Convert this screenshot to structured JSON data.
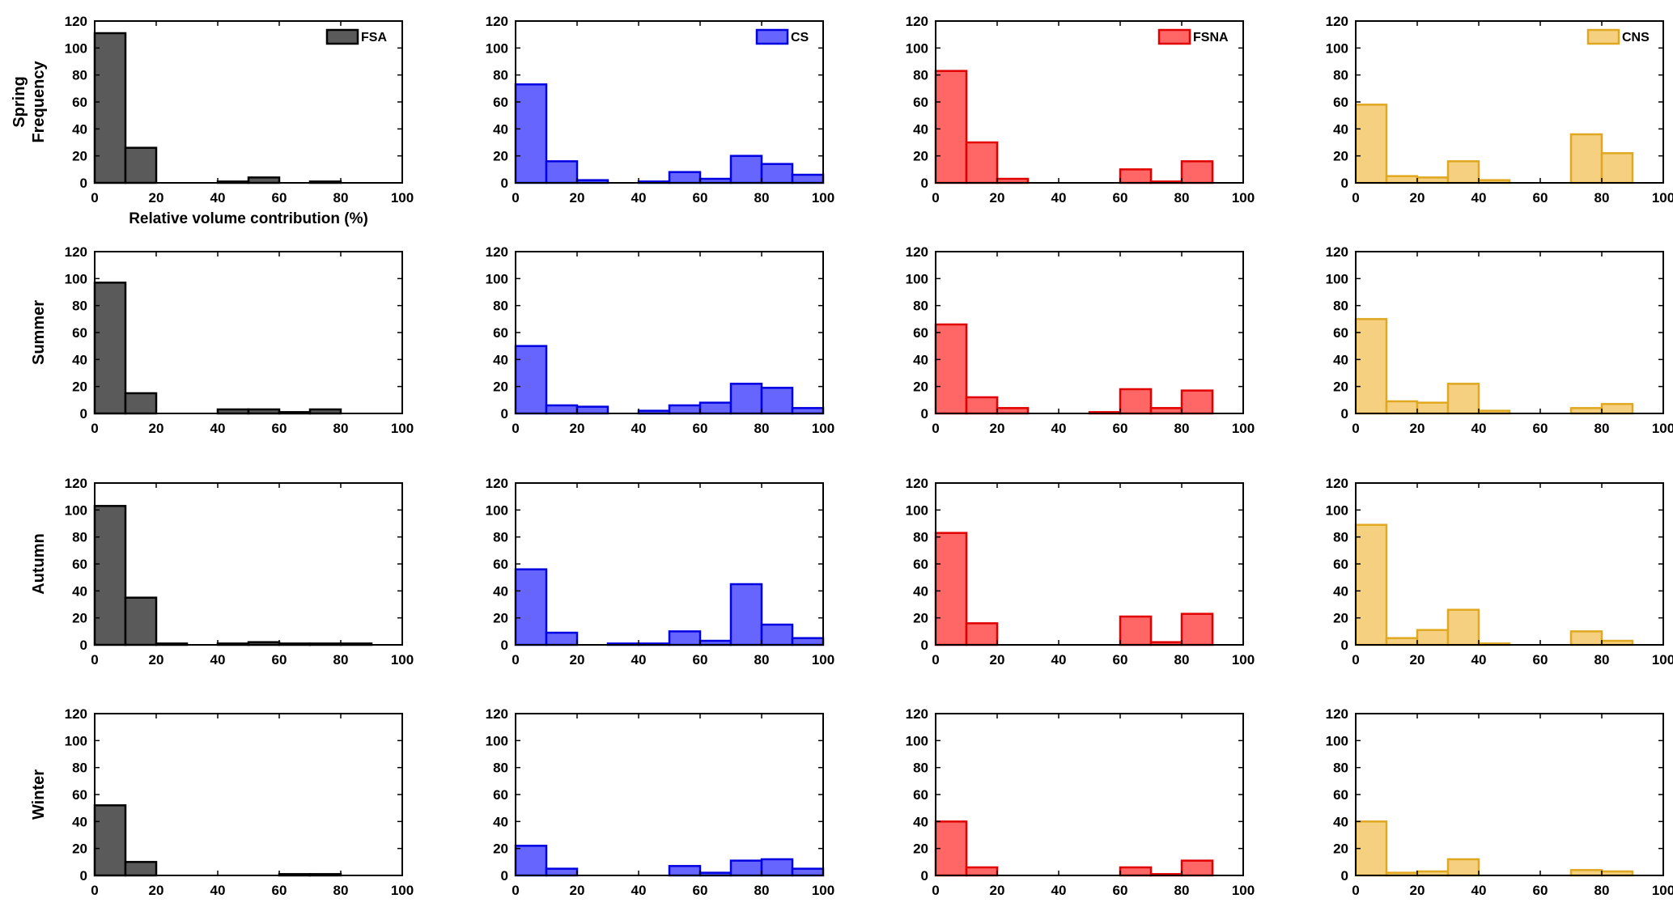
{
  "figure": {
    "ylabel": "Frequency",
    "xlabel": "Relative volume contribution (%)",
    "rows": [
      "Spring",
      "Summer",
      "Autumn",
      "Winter"
    ]
  },
  "chart_data": {
    "type": "bar",
    "xlim": [
      0,
      100
    ],
    "ylim": [
      0,
      120
    ],
    "xticks": [
      0,
      20,
      40,
      60,
      80,
      100
    ],
    "yticks": [
      0,
      20,
      40,
      60,
      80,
      100,
      120
    ],
    "bin_edges": [
      0,
      10,
      20,
      30,
      40,
      50,
      60,
      70,
      80,
      90,
      100
    ],
    "series": [
      {
        "name": "FSA",
        "fill": "#5a5a5a",
        "edge": "#000000"
      },
      {
        "name": "CS",
        "fill": "#6666ff",
        "edge": "#0000e0"
      },
      {
        "name": "FSNA",
        "fill": "#ff6666",
        "edge": "#e00000"
      },
      {
        "name": "CNS",
        "fill": "#f5d080",
        "edge": "#e0a820"
      }
    ],
    "counts": {
      "Spring": {
        "FSA": [
          111,
          26,
          0,
          0,
          1,
          4,
          0,
          1,
          0,
          0
        ],
        "CS": [
          73,
          16,
          2,
          0,
          1,
          8,
          3,
          20,
          14,
          6
        ],
        "FSNA": [
          83,
          30,
          3,
          0,
          0,
          0,
          10,
          1,
          16,
          0
        ],
        "CNS": [
          58,
          5,
          4,
          16,
          2,
          0,
          0,
          36,
          22,
          0
        ]
      },
      "Summer": {
        "FSA": [
          97,
          15,
          0,
          0,
          3,
          3,
          1,
          3,
          0,
          0
        ],
        "CS": [
          50,
          6,
          5,
          0,
          2,
          6,
          8,
          22,
          19,
          4
        ],
        "FSNA": [
          66,
          12,
          4,
          0,
          0,
          1,
          18,
          4,
          17,
          0
        ],
        "CNS": [
          70,
          9,
          8,
          22,
          2,
          0,
          0,
          4,
          7,
          0
        ]
      },
      "Autumn": {
        "FSA": [
          103,
          35,
          1,
          0,
          1,
          2,
          1,
          1,
          1,
          0
        ],
        "CS": [
          56,
          9,
          0,
          1,
          1,
          10,
          3,
          45,
          15,
          5
        ],
        "FSNA": [
          83,
          16,
          0,
          0,
          0,
          0,
          21,
          2,
          23,
          0
        ],
        "CNS": [
          89,
          5,
          11,
          26,
          1,
          0,
          0,
          10,
          3,
          0
        ]
      },
      "Winter": {
        "FSA": [
          52,
          10,
          0,
          0,
          0,
          0,
          1,
          1,
          0,
          0
        ],
        "CS": [
          22,
          5,
          0,
          0,
          0,
          7,
          2,
          11,
          12,
          5
        ],
        "FSNA": [
          40,
          6,
          0,
          0,
          0,
          0,
          6,
          1,
          11,
          0
        ],
        "CNS": [
          40,
          2,
          3,
          12,
          0,
          0,
          0,
          4,
          3,
          0
        ]
      }
    }
  }
}
